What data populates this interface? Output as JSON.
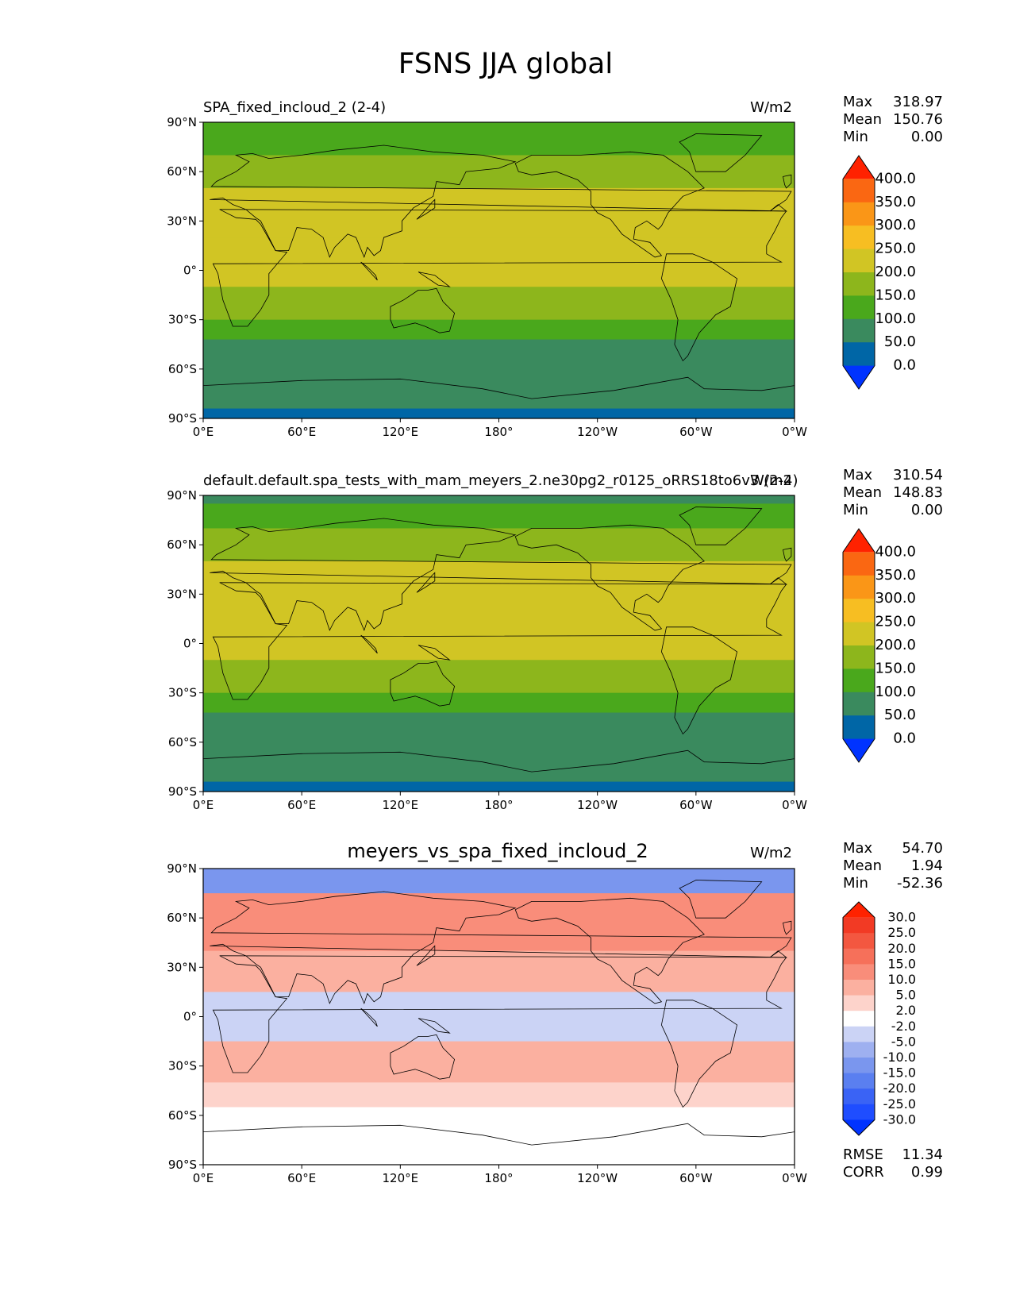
{
  "figure_title": "FSNS JJA global",
  "lat_ticks": [
    "90°N",
    "60°N",
    "30°N",
    "0°",
    "30°S",
    "60°S",
    "90°S"
  ],
  "lon_ticks": [
    "0°E",
    "60°E",
    "120°E",
    "180°",
    "120°W",
    "60°W",
    "0°W"
  ],
  "panels": [
    {
      "title": "SPA_fixed_incloud_2 (2-4)",
      "units": "W/m2",
      "stats": [
        {
          "label": "Max",
          "value": "318.97"
        },
        {
          "label": "Mean",
          "value": "150.76"
        },
        {
          "label": "Min",
          "value": "0.00"
        }
      ],
      "colorbar_labels": [
        "400.0",
        "350.0",
        "300.0",
        "250.0",
        "200.0",
        "150.0",
        "100.0",
        "50.0",
        "0.0"
      ]
    },
    {
      "title": "default.default.spa_tests_with_mam_meyers_2.ne30pg2_r0125_oRRS18to6v3 (2-4)",
      "units": "W/m2",
      "stats": [
        {
          "label": "Max",
          "value": "310.54"
        },
        {
          "label": "Mean",
          "value": "148.83"
        },
        {
          "label": "Min",
          "value": "0.00"
        }
      ],
      "colorbar_labels": [
        "400.0",
        "350.0",
        "300.0",
        "250.0",
        "200.0",
        "150.0",
        "100.0",
        "50.0",
        "0.0"
      ]
    },
    {
      "title": "meyers_vs_spa_fixed_incloud_2",
      "units": "W/m2",
      "stats": [
        {
          "label": "Max",
          "value": "54.70"
        },
        {
          "label": "Mean",
          "value": "1.94"
        },
        {
          "label": "Min",
          "value": "-52.36"
        }
      ],
      "colorbar_labels": [
        "30.0",
        "25.0",
        "20.0",
        "15.0",
        "10.0",
        "5.0",
        "2.0",
        "-2.0",
        "-5.0",
        "-10.0",
        "-15.0",
        "-20.0",
        "-25.0",
        "-30.0"
      ],
      "extra_stats": [
        {
          "label": "RMSE",
          "value": "11.34"
        },
        {
          "label": "CORR",
          "value": "0.99"
        }
      ]
    }
  ],
  "chart_data": [
    {
      "type": "heatmap",
      "title": "SPA_fixed_incloud_2 (2-4)",
      "units": "W/m2",
      "xlabel": "",
      "ylabel": "",
      "xlim": [
        0,
        360
      ],
      "ylim": [
        -90,
        90
      ],
      "levels": [
        0,
        50,
        100,
        150,
        200,
        250,
        300,
        350,
        400
      ],
      "level_colors": [
        "#0033ff",
        "#0066a6",
        "#3a8a5e",
        "#4aa81c",
        "#8db61c",
        "#d1c524",
        "#f7be22",
        "#fa9617",
        "#fa6712",
        "#ff2200"
      ],
      "zonal_bands": [
        {
          "lat": [
            70,
            90
          ],
          "value": 100
        },
        {
          "lat": [
            50,
            70
          ],
          "value": 160
        },
        {
          "lat": [
            20,
            50
          ],
          "value": 230
        },
        {
          "lat": [
            -10,
            20
          ],
          "value": 210
        },
        {
          "lat": [
            -30,
            -10
          ],
          "value": 170
        },
        {
          "lat": [
            -42,
            -30
          ],
          "value": 120
        },
        {
          "lat": [
            -84,
            -42
          ],
          "value": 60
        },
        {
          "lat": [
            -90,
            -84
          ],
          "value": 20
        }
      ],
      "stats": {
        "max": 318.97,
        "mean": 150.76,
        "min": 0.0
      }
    },
    {
      "type": "heatmap",
      "title": "default.default.spa_tests_with_mam_meyers_2.ne30pg2_r0125_oRRS18to6v3 (2-4)",
      "units": "W/m2",
      "xlabel": "",
      "ylabel": "",
      "xlim": [
        0,
        360
      ],
      "ylim": [
        -90,
        90
      ],
      "levels": [
        0,
        50,
        100,
        150,
        200,
        250,
        300,
        350,
        400
      ],
      "level_colors": [
        "#0033ff",
        "#0066a6",
        "#3a8a5e",
        "#4aa81c",
        "#8db61c",
        "#d1c524",
        "#f7be22",
        "#fa9617",
        "#fa6712",
        "#ff2200"
      ],
      "zonal_bands": [
        {
          "lat": [
            85,
            90
          ],
          "value": 70
        },
        {
          "lat": [
            70,
            85
          ],
          "value": 110
        },
        {
          "lat": [
            50,
            70
          ],
          "value": 160
        },
        {
          "lat": [
            20,
            50
          ],
          "value": 215
        },
        {
          "lat": [
            -10,
            20
          ],
          "value": 205
        },
        {
          "lat": [
            -30,
            -10
          ],
          "value": 165
        },
        {
          "lat": [
            -42,
            -30
          ],
          "value": 120
        },
        {
          "lat": [
            -84,
            -42
          ],
          "value": 60
        },
        {
          "lat": [
            -90,
            -84
          ],
          "value": 20
        }
      ],
      "stats": {
        "max": 310.54,
        "mean": 148.83,
        "min": 0.0
      }
    },
    {
      "type": "heatmap",
      "title": "meyers_vs_spa_fixed_incloud_2",
      "units": "W/m2",
      "xlabel": "",
      "ylabel": "",
      "xlim": [
        0,
        360
      ],
      "ylim": [
        -90,
        90
      ],
      "levels": [
        -30,
        -25,
        -20,
        -15,
        -10,
        -5,
        -2,
        2,
        5,
        10,
        15,
        20,
        25,
        30
      ],
      "level_colors": [
        "#0033ff",
        "#1f4dff",
        "#3a63f5",
        "#5a7ff0",
        "#7a96ee",
        "#9eb0f0",
        "#cbd3f5",
        "#ffffff",
        "#fdd3cb",
        "#fbb0a0",
        "#f98d7a",
        "#f6705a",
        "#f35740",
        "#f23a24",
        "#ff2200"
      ],
      "zonal_bands": [
        {
          "lat": [
            75,
            90
          ],
          "value": -12
        },
        {
          "lat": [
            40,
            75
          ],
          "value": 12
        },
        {
          "lat": [
            15,
            40
          ],
          "value": 6
        },
        {
          "lat": [
            -15,
            15
          ],
          "value": -3
        },
        {
          "lat": [
            -40,
            -15
          ],
          "value": 8
        },
        {
          "lat": [
            -55,
            -40
          ],
          "value": 3
        },
        {
          "lat": [
            -90,
            -55
          ],
          "value": 0
        }
      ],
      "stats": {
        "max": 54.7,
        "mean": 1.94,
        "min": -52.36,
        "rmse": 11.34,
        "corr": 0.99
      }
    }
  ]
}
